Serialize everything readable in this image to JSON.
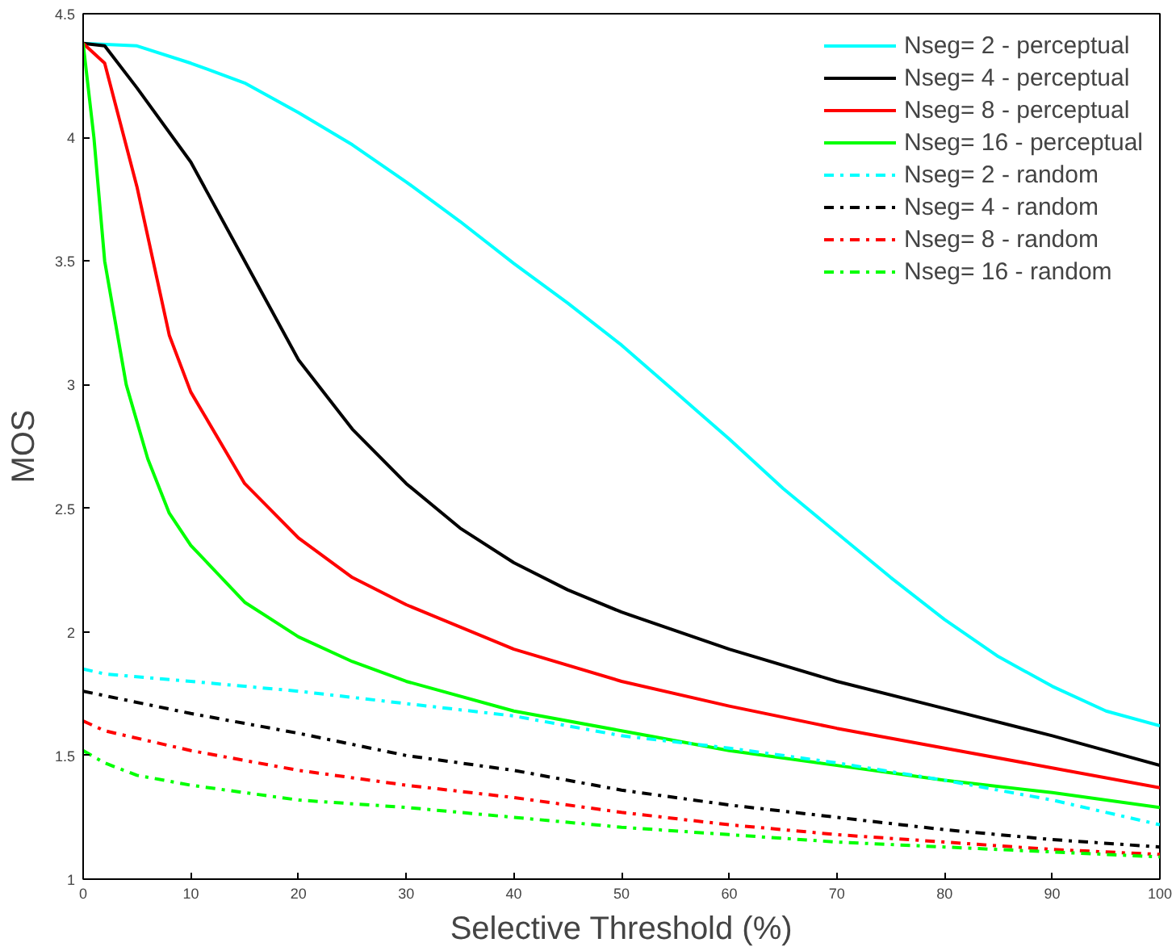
{
  "chart_data": {
    "type": "line",
    "xlabel": "Selective Threshold (%)",
    "ylabel": "MOS",
    "xlim": [
      0,
      100
    ],
    "ylim": [
      1,
      4.5
    ],
    "xticks": [
      0,
      10,
      20,
      30,
      40,
      50,
      60,
      70,
      80,
      90,
      100
    ],
    "yticks": [
      1,
      1.5,
      2,
      2.5,
      3,
      3.5,
      4,
      4.5
    ],
    "grid": false,
    "legend": "top right",
    "marker": "none",
    "series": [
      {
        "name": "Nseg= 2 - perceptual",
        "color": "#00ffff",
        "line_style": "solid",
        "x": [
          0,
          5,
          10,
          15,
          20,
          25,
          30,
          35,
          40,
          45,
          50,
          55,
          60,
          65,
          70,
          75,
          80,
          85,
          90,
          95,
          100
        ],
        "values": [
          4.38,
          4.37,
          4.3,
          4.22,
          4.1,
          3.97,
          3.82,
          3.66,
          3.49,
          3.33,
          3.16,
          2.97,
          2.78,
          2.58,
          2.4,
          2.22,
          2.05,
          1.9,
          1.78,
          1.68,
          1.62
        ]
      },
      {
        "name": "Nseg= 4 - perceptual",
        "color": "#000000",
        "line_style": "solid",
        "x": [
          0,
          2,
          5,
          10,
          15,
          20,
          25,
          30,
          35,
          40,
          45,
          50,
          60,
          70,
          80,
          90,
          100
        ],
        "values": [
          4.38,
          4.37,
          4.2,
          3.9,
          3.5,
          3.1,
          2.82,
          2.6,
          2.42,
          2.28,
          2.17,
          2.08,
          1.93,
          1.8,
          1.69,
          1.58,
          1.46
        ]
      },
      {
        "name": "Nseg= 8 - perceptual",
        "color": "#ff0000",
        "line_style": "solid",
        "x": [
          0,
          2,
          5,
          8,
          10,
          15,
          20,
          25,
          30,
          40,
          50,
          60,
          70,
          80,
          90,
          100
        ],
        "values": [
          4.38,
          4.3,
          3.8,
          3.2,
          2.97,
          2.6,
          2.38,
          2.22,
          2.11,
          1.93,
          1.8,
          1.7,
          1.61,
          1.53,
          1.45,
          1.37
        ]
      },
      {
        "name": "Nseg= 16 - perceptual",
        "color": "#00ff00",
        "line_style": "solid",
        "x": [
          0,
          1,
          2,
          4,
          6,
          8,
          10,
          15,
          20,
          25,
          30,
          40,
          50,
          60,
          70,
          80,
          90,
          100
        ],
        "values": [
          4.38,
          4.0,
          3.5,
          3.0,
          2.7,
          2.48,
          2.35,
          2.12,
          1.98,
          1.88,
          1.8,
          1.68,
          1.6,
          1.52,
          1.46,
          1.4,
          1.35,
          1.29
        ]
      },
      {
        "name": "Nseg= 2 - random",
        "color": "#00ffff",
        "line_style": "dashdot",
        "x": [
          0,
          2,
          10,
          20,
          30,
          40,
          50,
          60,
          70,
          80,
          90,
          100
        ],
        "values": [
          1.85,
          1.83,
          1.8,
          1.76,
          1.71,
          1.66,
          1.58,
          1.53,
          1.47,
          1.4,
          1.32,
          1.22
        ]
      },
      {
        "name": "Nseg= 4 - random",
        "color": "#000000",
        "line_style": "dashdot",
        "x": [
          0,
          10,
          20,
          30,
          40,
          50,
          60,
          70,
          80,
          90,
          100
        ],
        "values": [
          1.76,
          1.67,
          1.59,
          1.5,
          1.44,
          1.36,
          1.3,
          1.25,
          1.2,
          1.16,
          1.13
        ]
      },
      {
        "name": "Nseg= 8 - random",
        "color": "#ff0000",
        "line_style": "dashdot",
        "x": [
          0,
          2,
          10,
          20,
          30,
          40,
          50,
          60,
          70,
          80,
          90,
          100
        ],
        "values": [
          1.64,
          1.6,
          1.52,
          1.44,
          1.38,
          1.33,
          1.27,
          1.22,
          1.18,
          1.15,
          1.12,
          1.1
        ]
      },
      {
        "name": "Nseg= 16 - random",
        "color": "#00ff00",
        "line_style": "dashdot",
        "x": [
          0,
          2,
          5,
          10,
          20,
          30,
          40,
          50,
          60,
          70,
          80,
          90,
          100
        ],
        "values": [
          1.52,
          1.47,
          1.42,
          1.38,
          1.32,
          1.29,
          1.25,
          1.21,
          1.18,
          1.15,
          1.13,
          1.11,
          1.09
        ]
      }
    ]
  }
}
